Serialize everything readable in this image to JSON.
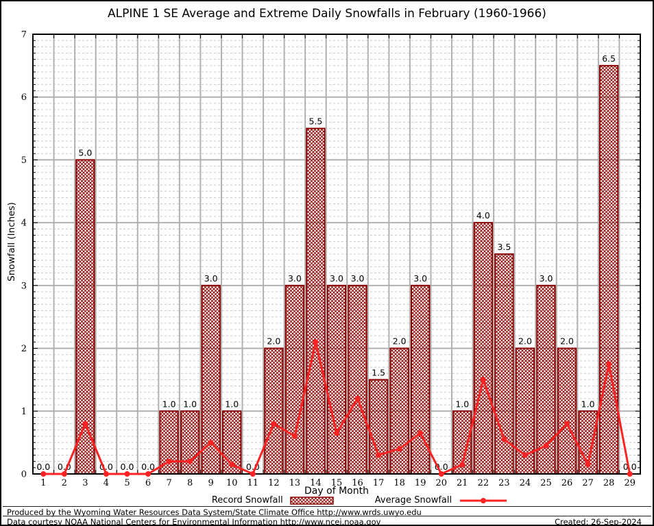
{
  "title": "ALPINE 1 SE Average and Extreme Daily Snowfalls in February (1960-1966)",
  "chart_data": {
    "type": "bar",
    "title": "ALPINE 1 SE Average and Extreme Daily Snowfalls in February (1960-1966)",
    "xlabel": "Day of Month",
    "ylabel": "Snowfall (Inches)",
    "ylim": [
      0,
      7
    ],
    "y_major_step": 1,
    "y_minor_step": 0.1,
    "grid": "on",
    "legend_position": "bottom",
    "categories": [
      1,
      2,
      3,
      4,
      5,
      6,
      7,
      8,
      9,
      10,
      11,
      12,
      13,
      14,
      15,
      16,
      17,
      18,
      19,
      20,
      21,
      22,
      23,
      24,
      25,
      26,
      27,
      28,
      29
    ],
    "series": [
      {
        "name": "Record Snowfall",
        "type": "bar",
        "style": "crosshatch",
        "color": "#8b0000",
        "values": [
          0.0,
          0.0,
          5.0,
          0.0,
          0.0,
          0.0,
          1.0,
          1.0,
          3.0,
          1.0,
          0.0,
          2.0,
          3.0,
          5.5,
          3.0,
          3.0,
          1.5,
          2.0,
          3.0,
          0.0,
          1.0,
          4.0,
          3.5,
          2.0,
          3.0,
          2.0,
          1.0,
          6.5,
          0.0
        ]
      },
      {
        "name": "Average Snowfall",
        "type": "line",
        "style": "line-with-points",
        "color": "#ff2222",
        "values": [
          0.0,
          0.0,
          0.8,
          0.0,
          0.0,
          0.0,
          0.2,
          0.2,
          0.5,
          0.15,
          0.0,
          0.8,
          0.6,
          2.1,
          0.65,
          1.2,
          0.3,
          0.4,
          0.65,
          0.0,
          0.15,
          1.5,
          0.55,
          0.3,
          0.45,
          0.8,
          0.15,
          1.75,
          0.0
        ]
      }
    ]
  },
  "colors": {
    "bar": "#8b0000",
    "line": "#ff2222",
    "grid_major": "#b0b0b0",
    "grid_minor": "#c8c8c8",
    "frame": "#000000"
  },
  "footer": {
    "line1": "Produced by the Wyoming Water Resources Data System/State Climate Office http://www.wrds.uwyo.edu",
    "line2": "Data courtesy NOAA National Centers for Environmental Information http://www.ncei.noaa.gov",
    "created": "Created: 26-Sep-2024"
  }
}
